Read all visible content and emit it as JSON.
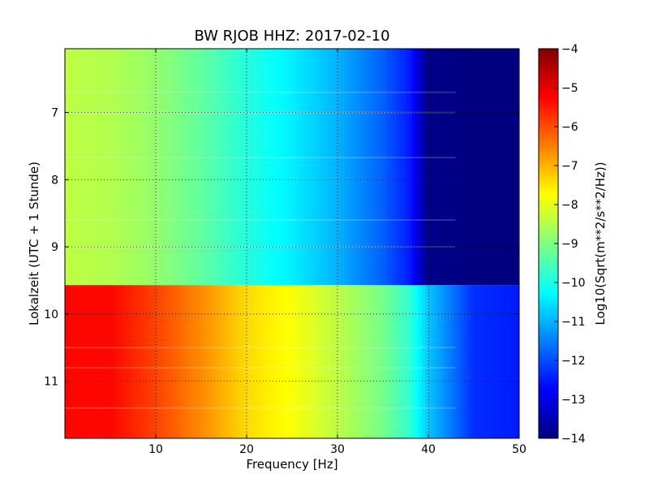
{
  "chart_data": {
    "type": "heatmap",
    "title": "BW RJOB HHZ: 2017-02-10",
    "xlabel": "Frequency [Hz]",
    "ylabel": "Lokalzeit (UTC + 1 Stunde)",
    "colorbar_label": "Log10(Sqrt(m**2/s**2/Hz))",
    "xlim": [
      0,
      50
    ],
    "ylim": [
      11.85,
      6.05
    ],
    "y_inverted": true,
    "clim": [
      -14,
      -4
    ],
    "colormap": "jet",
    "grid": true,
    "xticks": [
      10,
      20,
      30,
      40,
      50
    ],
    "xtick_labels": [
      "10",
      "20",
      "30",
      "40",
      "50"
    ],
    "yticks": [
      7,
      8,
      9,
      10,
      11
    ],
    "ytick_labels": [
      "7",
      "8",
      "9",
      "10",
      "11"
    ],
    "cticks": [
      -4,
      -5,
      -6,
      -7,
      -8,
      -9,
      -10,
      -11,
      -12,
      -13,
      -14
    ],
    "ctick_labels": [
      "−4",
      "−5",
      "−6",
      "−7",
      "−8",
      "−9",
      "−10",
      "−11",
      "−12",
      "−13",
      "−14"
    ],
    "segments": [
      {
        "time_range": [
          6.05,
          9.57
        ],
        "frequency_hz": [
          0,
          5,
          10,
          15,
          20,
          25,
          30,
          35,
          38,
          40,
          45,
          50
        ],
        "log10_psd": [
          -8.4,
          -8.5,
          -8.8,
          -9.3,
          -9.9,
          -10.4,
          -11.0,
          -11.8,
          -12.5,
          -13.9,
          -14.0,
          -14.0
        ]
      },
      {
        "time_range": [
          9.57,
          11.85
        ],
        "frequency_hz": [
          0,
          5,
          10,
          15,
          20,
          25,
          30,
          35,
          38,
          40,
          45,
          50
        ],
        "log10_psd": [
          -5.3,
          -5.3,
          -5.9,
          -6.6,
          -7.4,
          -7.8,
          -8.4,
          -9.1,
          -9.8,
          -10.8,
          -12.3,
          -12.5
        ]
      }
    ],
    "horizontal_lines_hours": [
      6.7,
      7.0,
      7.67,
      8.6,
      9.0,
      10.5,
      10.8,
      11.4
    ]
  }
}
